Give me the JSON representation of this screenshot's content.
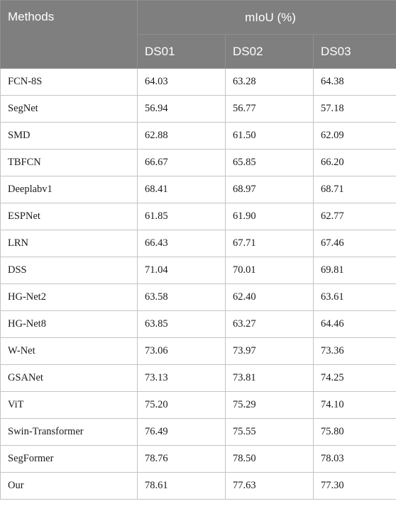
{
  "table": {
    "header": {
      "methods_label": "Methods",
      "group_label": "mIoU (%)",
      "columns": [
        "DS01",
        "DS02",
        "DS03"
      ]
    },
    "rows": [
      {
        "method": "FCN-8S",
        "ds01": "64.03",
        "ds02": "63.28",
        "ds03": "64.38"
      },
      {
        "method": "SegNet",
        "ds01": "56.94",
        "ds02": "56.77",
        "ds03": "57.18"
      },
      {
        "method": "SMD",
        "ds01": "62.88",
        "ds02": "61.50",
        "ds03": "62.09"
      },
      {
        "method": "TBFCN",
        "ds01": "66.67",
        "ds02": "65.85",
        "ds03": "66.20"
      },
      {
        "method": "Deeplabv1",
        "ds01": "68.41",
        "ds02": "68.97",
        "ds03": "68.71"
      },
      {
        "method": "ESPNet",
        "ds01": "61.85",
        "ds02": "61.90",
        "ds03": "62.77"
      },
      {
        "method": "LRN",
        "ds01": "66.43",
        "ds02": "67.71",
        "ds03": "67.46"
      },
      {
        "method": "DSS",
        "ds01": "71.04",
        "ds02": "70.01",
        "ds03": "69.81"
      },
      {
        "method": "HG-Net2",
        "ds01": "63.58",
        "ds02": "62.40",
        "ds03": "63.61"
      },
      {
        "method": "HG-Net8",
        "ds01": "63.85",
        "ds02": "63.27",
        "ds03": "64.46"
      },
      {
        "method": "W-Net",
        "ds01": "73.06",
        "ds02": "73.97",
        "ds03": "73.36"
      },
      {
        "method": "GSANet",
        "ds01": "73.13",
        "ds02": "73.81",
        "ds03": "74.25"
      },
      {
        "method": "ViT",
        "ds01": "75.20",
        "ds02": "75.29",
        "ds03": "74.10"
      },
      {
        "method": "Swin-Transformer",
        "ds01": "76.49",
        "ds02": "75.55",
        "ds03": "75.80"
      },
      {
        "method": "SegFormer",
        "ds01": "78.76",
        "ds02": "78.50",
        "ds03": "78.03"
      },
      {
        "method": "Our",
        "ds01": "78.61",
        "ds02": "77.63",
        "ds03": "77.30"
      }
    ]
  }
}
